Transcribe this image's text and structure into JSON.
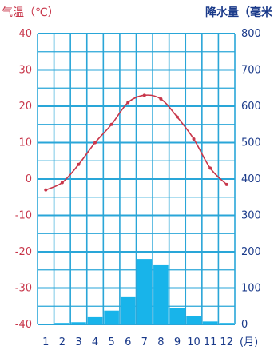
{
  "chart_data": {
    "type": "bar+line",
    "title": "",
    "left_axis": {
      "label": "气温（℃）",
      "range": [
        -40,
        40
      ],
      "ticks": [
        40,
        30,
        20,
        10,
        0,
        -10,
        -20,
        -30,
        -40
      ]
    },
    "right_axis": {
      "label": "降水量（毫米",
      "range": [
        0,
        800
      ],
      "tick_values": [
        0,
        100,
        200,
        300,
        400,
        500,
        600,
        700,
        800
      ],
      "ticks": [
        "0",
        "100",
        "200",
        "300",
        "400",
        "500",
        "600",
        "700",
        "800"
      ]
    },
    "x_axis": {
      "categories": [
        "1",
        "2",
        "3",
        "4",
        "5",
        "6",
        "7",
        "8",
        "9",
        "10",
        "11",
        "12"
      ],
      "unit": "(月)"
    },
    "series": [
      {
        "kind": "line",
        "axis": "left",
        "values": [
          -3,
          -1,
          4,
          10,
          15,
          21,
          23,
          22,
          17,
          11,
          3,
          -1.5
        ]
      },
      {
        "kind": "bar",
        "axis": "right",
        "values": [
          2,
          4,
          6,
          20,
          38,
          75,
          180,
          165,
          45,
          23,
          8,
          4
        ]
      }
    ],
    "grid": true,
    "colors": {
      "grid": "#29a6d8",
      "temp_line": "#c8364a",
      "bars": "#18b4ea",
      "left_text": "#c8364a",
      "right_text": "#1a3a8a"
    }
  }
}
